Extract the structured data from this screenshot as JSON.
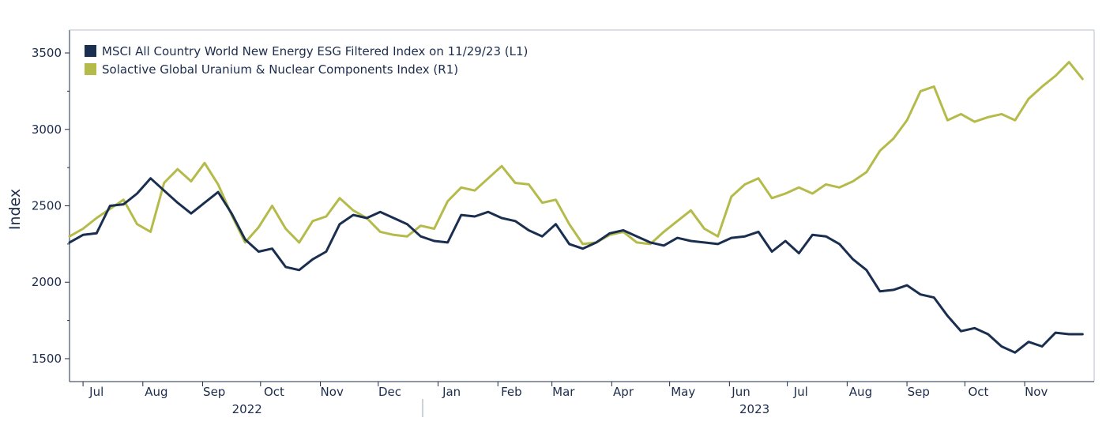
{
  "chart_data": {
    "type": "line",
    "ylabel": "Index",
    "ylim": [
      1350,
      3650
    ],
    "yticks": [
      1500,
      2000,
      2500,
      3000,
      3500
    ],
    "xlim": [
      "2022-06-24",
      "2023-12-07"
    ],
    "month_labels": [
      {
        "label": "Jul",
        "date": "2022-07-08"
      },
      {
        "label": "Aug",
        "date": "2022-08-08"
      },
      {
        "label": "Sep",
        "date": "2022-09-07"
      },
      {
        "label": "Oct",
        "date": "2022-10-08"
      },
      {
        "label": "Nov",
        "date": "2022-11-07"
      },
      {
        "label": "Dec",
        "date": "2022-12-07"
      },
      {
        "label": "Jan",
        "date": "2023-01-08"
      },
      {
        "label": "Feb",
        "date": "2023-02-08"
      },
      {
        "label": "Mar",
        "date": "2023-03-07"
      },
      {
        "label": "Apr",
        "date": "2023-04-07"
      },
      {
        "label": "May",
        "date": "2023-05-08"
      },
      {
        "label": "Jun",
        "date": "2023-06-07"
      },
      {
        "label": "Jul",
        "date": "2023-07-08"
      },
      {
        "label": "Aug",
        "date": "2023-08-08"
      },
      {
        "label": "Sep",
        "date": "2023-09-07"
      },
      {
        "label": "Oct",
        "date": "2023-10-08"
      },
      {
        "label": "Nov",
        "date": "2023-11-07"
      }
    ],
    "year_labels": [
      {
        "label": "2022",
        "date": "2022-09-24"
      },
      {
        "label": "2023",
        "date": "2023-06-14"
      }
    ],
    "year_divider_date": "2022-12-24",
    "legend_position": "top-left",
    "series": [
      {
        "name": "MSCI All Country World New Energy ESG Filtered Index on 11/29/23 (L1)",
        "axis": "L1",
        "color": "#1a2e50",
        "x": [
          "2022-06-24",
          "2022-07-01",
          "2022-07-08",
          "2022-07-15",
          "2022-07-22",
          "2022-07-29",
          "2022-08-05",
          "2022-08-12",
          "2022-08-19",
          "2022-08-26",
          "2022-09-02",
          "2022-09-09",
          "2022-09-16",
          "2022-09-23",
          "2022-09-30",
          "2022-10-07",
          "2022-10-14",
          "2022-10-21",
          "2022-10-28",
          "2022-11-04",
          "2022-11-11",
          "2022-11-18",
          "2022-11-25",
          "2022-12-02",
          "2022-12-09",
          "2022-12-16",
          "2022-12-23",
          "2022-12-30",
          "2023-01-06",
          "2023-01-13",
          "2023-01-20",
          "2023-01-27",
          "2023-02-03",
          "2023-02-10",
          "2023-02-17",
          "2023-02-24",
          "2023-03-03",
          "2023-03-10",
          "2023-03-17",
          "2023-03-24",
          "2023-03-31",
          "2023-04-07",
          "2023-04-14",
          "2023-04-21",
          "2023-04-28",
          "2023-05-05",
          "2023-05-12",
          "2023-05-19",
          "2023-05-26",
          "2023-06-02",
          "2023-06-09",
          "2023-06-16",
          "2023-06-23",
          "2023-06-30",
          "2023-07-07",
          "2023-07-14",
          "2023-07-21",
          "2023-07-28",
          "2023-08-04",
          "2023-08-11",
          "2023-08-18",
          "2023-08-25",
          "2023-09-01",
          "2023-09-08",
          "2023-09-15",
          "2023-09-22",
          "2023-09-29",
          "2023-10-06",
          "2023-10-13",
          "2023-10-20",
          "2023-10-27",
          "2023-11-03",
          "2023-11-10",
          "2023-11-17",
          "2023-11-24",
          "2023-12-01"
        ],
        "y": [
          2260,
          2310,
          2320,
          2500,
          2510,
          2580,
          2680,
          2600,
          2520,
          2450,
          2520,
          2590,
          2450,
          2280,
          2200,
          2220,
          2100,
          2080,
          2150,
          2200,
          2380,
          2440,
          2420,
          2460,
          2420,
          2380,
          2300,
          2270,
          2260,
          2440,
          2430,
          2460,
          2420,
          2400,
          2340,
          2300,
          2380,
          2250,
          2220,
          2260,
          2320,
          2340,
          2300,
          2260,
          2240,
          2290,
          2270,
          2260,
          2250,
          2290,
          2300,
          2330,
          2200,
          2270,
          2190,
          2310,
          2300,
          2250,
          2150,
          2080,
          1940,
          1950,
          1980,
          1920,
          1900,
          1780,
          1680,
          1700,
          1660,
          1580,
          1540,
          1610,
          1580,
          1670,
          1660,
          1660
        ]
      },
      {
        "name": "Solactive Global Uranium & Nuclear Components Index (R1)",
        "axis": "R1",
        "color": "#b5bb4a",
        "x": [
          "2022-06-24",
          "2022-07-01",
          "2022-07-08",
          "2022-07-15",
          "2022-07-22",
          "2022-07-29",
          "2022-08-05",
          "2022-08-12",
          "2022-08-19",
          "2022-08-26",
          "2022-09-02",
          "2022-09-09",
          "2022-09-16",
          "2022-09-23",
          "2022-09-30",
          "2022-10-07",
          "2022-10-14",
          "2022-10-21",
          "2022-10-28",
          "2022-11-04",
          "2022-11-11",
          "2022-11-18",
          "2022-11-25",
          "2022-12-02",
          "2022-12-09",
          "2022-12-16",
          "2022-12-23",
          "2022-12-30",
          "2023-01-06",
          "2023-01-13",
          "2023-01-20",
          "2023-01-27",
          "2023-02-03",
          "2023-02-10",
          "2023-02-17",
          "2023-02-24",
          "2023-03-03",
          "2023-03-10",
          "2023-03-17",
          "2023-03-24",
          "2023-03-31",
          "2023-04-07",
          "2023-04-14",
          "2023-04-21",
          "2023-04-28",
          "2023-05-05",
          "2023-05-12",
          "2023-05-19",
          "2023-05-26",
          "2023-06-02",
          "2023-06-09",
          "2023-06-16",
          "2023-06-23",
          "2023-06-30",
          "2023-07-07",
          "2023-07-14",
          "2023-07-21",
          "2023-07-28",
          "2023-08-04",
          "2023-08-11",
          "2023-08-18",
          "2023-08-25",
          "2023-09-01",
          "2023-09-08",
          "2023-09-15",
          "2023-09-22",
          "2023-09-29",
          "2023-10-06",
          "2023-10-13",
          "2023-10-20",
          "2023-10-27",
          "2023-11-03",
          "2023-11-10",
          "2023-11-17",
          "2023-11-24",
          "2023-12-01"
        ],
        "y": [
          2300,
          2350,
          2420,
          2480,
          2540,
          2380,
          2330,
          2650,
          2740,
          2660,
          2780,
          2640,
          2440,
          2260,
          2360,
          2500,
          2350,
          2260,
          2400,
          2430,
          2550,
          2470,
          2420,
          2330,
          2310,
          2300,
          2370,
          2350,
          2530,
          2620,
          2600,
          2680,
          2760,
          2650,
          2640,
          2520,
          2540,
          2380,
          2250,
          2260,
          2310,
          2330,
          2260,
          2250,
          2330,
          2400,
          2470,
          2350,
          2300,
          2560,
          2640,
          2680,
          2550,
          2580,
          2620,
          2580,
          2640,
          2620,
          2660,
          2720,
          2860,
          2940,
          3060,
          3250,
          3280,
          3060,
          3100,
          3050,
          3080,
          3100,
          3060,
          3200,
          3280,
          3350,
          3440,
          3330
        ]
      }
    ]
  }
}
